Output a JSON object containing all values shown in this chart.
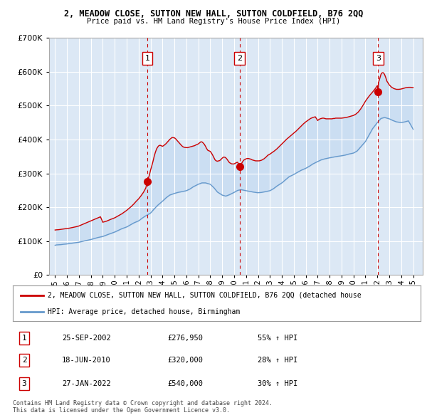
{
  "title1": "2, MEADOW CLOSE, SUTTON NEW HALL, SUTTON COLDFIELD, B76 2QQ",
  "title2": "Price paid vs. HM Land Registry's House Price Index (HPI)",
  "legend_line1": "2, MEADOW CLOSE, SUTTON NEW HALL, SUTTON COLDFIELD, B76 2QQ (detached house",
  "legend_line2": "HPI: Average price, detached house, Birmingham",
  "transactions": [
    {
      "num": 1,
      "date": "25-SEP-2002",
      "price": 276950,
      "price_str": "£276,950",
      "pct": "55%",
      "dir": "↑",
      "x": 2002.73
    },
    {
      "num": 2,
      "date": "18-JUN-2010",
      "price": 320000,
      "price_str": "£320,000",
      "pct": "28%",
      "dir": "↑",
      "x": 2010.46
    },
    {
      "num": 3,
      "date": "27-JAN-2022",
      "price": 540000,
      "price_str": "£540,000",
      "pct": "30%",
      "dir": "↑",
      "x": 2022.07
    }
  ],
  "copyright": "Contains HM Land Registry data © Crown copyright and database right 2024.\nThis data is licensed under the Open Government Licence v3.0.",
  "hpi_color": "#6699cc",
  "price_color": "#cc0000",
  "fill_color": "#ddeeff",
  "vline_color": "#cc0000",
  "ylim": [
    0,
    700000
  ],
  "xlim_start": 1994.5,
  "xlim_end": 2025.8,
  "yticks": [
    0,
    100000,
    200000,
    300000,
    400000,
    500000,
    600000,
    700000
  ],
  "xtick_years": [
    1995,
    1996,
    1997,
    1998,
    1999,
    2000,
    2001,
    2002,
    2003,
    2004,
    2005,
    2006,
    2007,
    2008,
    2009,
    2010,
    2011,
    2012,
    2013,
    2014,
    2015,
    2016,
    2017,
    2018,
    2019,
    2020,
    2021,
    2022,
    2023,
    2024,
    2025
  ],
  "hpi_data": [
    [
      1995.0,
      88000
    ],
    [
      1995.1,
      89000
    ],
    [
      1995.3,
      89500
    ],
    [
      1995.5,
      90000
    ],
    [
      1995.7,
      91000
    ],
    [
      1996.0,
      92000
    ],
    [
      1996.3,
      93500
    ],
    [
      1996.6,
      95000
    ],
    [
      1997.0,
      97000
    ],
    [
      1997.3,
      99500
    ],
    [
      1997.6,
      102000
    ],
    [
      1998.0,
      105000
    ],
    [
      1998.3,
      108000
    ],
    [
      1998.6,
      111000
    ],
    [
      1999.0,
      114000
    ],
    [
      1999.3,
      118000
    ],
    [
      1999.6,
      122000
    ],
    [
      2000.0,
      127000
    ],
    [
      2000.3,
      132000
    ],
    [
      2000.6,
      137000
    ],
    [
      2001.0,
      142000
    ],
    [
      2001.3,
      148000
    ],
    [
      2001.6,
      154000
    ],
    [
      2002.0,
      160000
    ],
    [
      2002.3,
      168000
    ],
    [
      2002.6,
      175000
    ],
    [
      2003.0,
      183000
    ],
    [
      2003.3,
      195000
    ],
    [
      2003.6,
      206000
    ],
    [
      2004.0,
      218000
    ],
    [
      2004.3,
      228000
    ],
    [
      2004.6,
      236000
    ],
    [
      2005.0,
      241000
    ],
    [
      2005.3,
      244000
    ],
    [
      2005.6,
      246000
    ],
    [
      2006.0,
      249000
    ],
    [
      2006.3,
      254000
    ],
    [
      2006.6,
      261000
    ],
    [
      2007.0,
      268000
    ],
    [
      2007.3,
      272000
    ],
    [
      2007.6,
      272000
    ],
    [
      2008.0,
      268000
    ],
    [
      2008.3,
      258000
    ],
    [
      2008.6,
      245000
    ],
    [
      2009.0,
      236000
    ],
    [
      2009.3,
      233000
    ],
    [
      2009.6,
      237000
    ],
    [
      2010.0,
      244000
    ],
    [
      2010.3,
      250000
    ],
    [
      2010.6,
      252000
    ],
    [
      2011.0,
      249000
    ],
    [
      2011.3,
      247000
    ],
    [
      2011.6,
      245000
    ],
    [
      2012.0,
      243000
    ],
    [
      2012.3,
      244000
    ],
    [
      2012.6,
      246000
    ],
    [
      2013.0,
      249000
    ],
    [
      2013.3,
      255000
    ],
    [
      2013.6,
      263000
    ],
    [
      2014.0,
      272000
    ],
    [
      2014.3,
      281000
    ],
    [
      2014.6,
      290000
    ],
    [
      2015.0,
      297000
    ],
    [
      2015.3,
      303000
    ],
    [
      2015.6,
      309000
    ],
    [
      2016.0,
      315000
    ],
    [
      2016.3,
      321000
    ],
    [
      2016.6,
      328000
    ],
    [
      2017.0,
      335000
    ],
    [
      2017.3,
      340000
    ],
    [
      2017.6,
      343000
    ],
    [
      2018.0,
      346000
    ],
    [
      2018.3,
      348000
    ],
    [
      2018.6,
      350000
    ],
    [
      2019.0,
      352000
    ],
    [
      2019.3,
      354000
    ],
    [
      2019.6,
      357000
    ],
    [
      2020.0,
      360000
    ],
    [
      2020.3,
      366000
    ],
    [
      2020.6,
      378000
    ],
    [
      2021.0,
      394000
    ],
    [
      2021.3,
      413000
    ],
    [
      2021.6,
      432000
    ],
    [
      2022.0,
      450000
    ],
    [
      2022.3,
      462000
    ],
    [
      2022.6,
      465000
    ],
    [
      2023.0,
      461000
    ],
    [
      2023.3,
      456000
    ],
    [
      2023.6,
      452000
    ],
    [
      2024.0,
      450000
    ],
    [
      2024.3,
      452000
    ],
    [
      2024.6,
      455000
    ],
    [
      2025.0,
      430000
    ]
  ],
  "price_data": [
    [
      1995.0,
      133000
    ],
    [
      1995.1,
      133500
    ],
    [
      1995.3,
      134000
    ],
    [
      1995.5,
      135000
    ],
    [
      1995.7,
      136000
    ],
    [
      1996.0,
      137500
    ],
    [
      1996.2,
      138500
    ],
    [
      1996.4,
      140000
    ],
    [
      1996.6,
      141500
    ],
    [
      1996.8,
      143000
    ],
    [
      1997.0,
      145000
    ],
    [
      1997.2,
      148000
    ],
    [
      1997.4,
      151000
    ],
    [
      1997.6,
      154000
    ],
    [
      1997.8,
      157000
    ],
    [
      1998.0,
      160000
    ],
    [
      1998.2,
      163000
    ],
    [
      1998.4,
      166000
    ],
    [
      1998.6,
      169000
    ],
    [
      1998.8,
      172000
    ],
    [
      1999.0,
      156000
    ],
    [
      1999.1,
      157000
    ],
    [
      1999.3,
      159000
    ],
    [
      1999.5,
      162000
    ],
    [
      1999.7,
      165000
    ],
    [
      2000.0,
      169000
    ],
    [
      2000.2,
      173000
    ],
    [
      2000.4,
      177000
    ],
    [
      2000.6,
      181000
    ],
    [
      2000.8,
      186000
    ],
    [
      2001.0,
      191000
    ],
    [
      2001.2,
      197000
    ],
    [
      2001.4,
      203000
    ],
    [
      2001.6,
      210000
    ],
    [
      2001.8,
      218000
    ],
    [
      2002.0,
      225000
    ],
    [
      2002.2,
      234000
    ],
    [
      2002.4,
      244000
    ],
    [
      2002.6,
      257000
    ],
    [
      2002.73,
      276950
    ],
    [
      2002.9,
      295000
    ],
    [
      2003.0,
      310000
    ],
    [
      2003.1,
      322000
    ],
    [
      2003.2,
      335000
    ],
    [
      2003.3,
      350000
    ],
    [
      2003.4,
      362000
    ],
    [
      2003.5,
      372000
    ],
    [
      2003.6,
      378000
    ],
    [
      2003.7,
      382000
    ],
    [
      2003.8,
      383000
    ],
    [
      2004.0,
      380000
    ],
    [
      2004.1,
      382000
    ],
    [
      2004.2,
      385000
    ],
    [
      2004.3,
      388000
    ],
    [
      2004.4,
      392000
    ],
    [
      2004.5,
      396000
    ],
    [
      2004.6,
      400000
    ],
    [
      2004.7,
      403000
    ],
    [
      2004.8,
      406000
    ],
    [
      2005.0,
      405000
    ],
    [
      2005.1,
      402000
    ],
    [
      2005.2,
      398000
    ],
    [
      2005.3,
      394000
    ],
    [
      2005.4,
      390000
    ],
    [
      2005.5,
      386000
    ],
    [
      2005.6,
      382000
    ],
    [
      2005.7,
      379000
    ],
    [
      2005.8,
      377000
    ],
    [
      2006.0,
      376000
    ],
    [
      2006.1,
      376000
    ],
    [
      2006.2,
      377000
    ],
    [
      2006.3,
      378000
    ],
    [
      2006.4,
      379000
    ],
    [
      2006.5,
      380000
    ],
    [
      2006.6,
      381000
    ],
    [
      2006.7,
      382000
    ],
    [
      2006.8,
      384000
    ],
    [
      2007.0,
      387000
    ],
    [
      2007.1,
      390000
    ],
    [
      2007.2,
      393000
    ],
    [
      2007.3,
      393000
    ],
    [
      2007.4,
      390000
    ],
    [
      2007.5,
      386000
    ],
    [
      2007.6,
      380000
    ],
    [
      2007.7,
      373000
    ],
    [
      2007.8,
      368000
    ],
    [
      2008.0,
      365000
    ],
    [
      2008.1,
      360000
    ],
    [
      2008.2,
      354000
    ],
    [
      2008.3,
      347000
    ],
    [
      2008.4,
      340000
    ],
    [
      2008.5,
      337000
    ],
    [
      2008.6,
      336000
    ],
    [
      2008.7,
      337000
    ],
    [
      2008.8,
      338000
    ],
    [
      2009.0,
      345000
    ],
    [
      2009.1,
      348000
    ],
    [
      2009.2,
      348000
    ],
    [
      2009.3,
      346000
    ],
    [
      2009.4,
      342000
    ],
    [
      2009.5,
      337000
    ],
    [
      2009.6,
      332000
    ],
    [
      2009.7,
      330000
    ],
    [
      2009.8,
      328000
    ],
    [
      2010.0,
      328000
    ],
    [
      2010.1,
      330000
    ],
    [
      2010.2,
      332000
    ],
    [
      2010.3,
      333000
    ],
    [
      2010.46,
      320000
    ],
    [
      2010.5,
      322000
    ],
    [
      2010.6,
      328000
    ],
    [
      2010.7,
      334000
    ],
    [
      2010.8,
      339000
    ],
    [
      2011.0,
      343000
    ],
    [
      2011.1,
      344000
    ],
    [
      2011.2,
      344000
    ],
    [
      2011.3,
      343000
    ],
    [
      2011.4,
      342000
    ],
    [
      2011.5,
      340000
    ],
    [
      2011.6,
      339000
    ],
    [
      2011.7,
      338000
    ],
    [
      2011.8,
      337000
    ],
    [
      2012.0,
      337000
    ],
    [
      2012.1,
      337000
    ],
    [
      2012.2,
      338000
    ],
    [
      2012.3,
      339000
    ],
    [
      2012.4,
      341000
    ],
    [
      2012.5,
      343000
    ],
    [
      2012.6,
      346000
    ],
    [
      2012.7,
      349000
    ],
    [
      2012.8,
      353000
    ],
    [
      2013.0,
      357000
    ],
    [
      2013.2,
      362000
    ],
    [
      2013.4,
      367000
    ],
    [
      2013.6,
      373000
    ],
    [
      2013.8,
      380000
    ],
    [
      2014.0,
      387000
    ],
    [
      2014.2,
      394000
    ],
    [
      2014.4,
      401000
    ],
    [
      2014.6,
      407000
    ],
    [
      2014.8,
      413000
    ],
    [
      2015.0,
      419000
    ],
    [
      2015.2,
      425000
    ],
    [
      2015.4,
      432000
    ],
    [
      2015.6,
      439000
    ],
    [
      2015.8,
      446000
    ],
    [
      2016.0,
      452000
    ],
    [
      2016.2,
      457000
    ],
    [
      2016.4,
      462000
    ],
    [
      2016.6,
      465000
    ],
    [
      2016.8,
      467000
    ],
    [
      2017.0,
      456000
    ],
    [
      2017.1,
      459000
    ],
    [
      2017.2,
      461000
    ],
    [
      2017.3,
      462000
    ],
    [
      2017.4,
      463000
    ],
    [
      2017.5,
      463000
    ],
    [
      2017.6,
      462000
    ],
    [
      2017.7,
      461000
    ],
    [
      2017.8,
      461000
    ],
    [
      2018.0,
      461000
    ],
    [
      2018.1,
      461000
    ],
    [
      2018.2,
      461000
    ],
    [
      2018.3,
      462000
    ],
    [
      2018.4,
      462000
    ],
    [
      2018.5,
      463000
    ],
    [
      2018.6,
      463000
    ],
    [
      2018.7,
      463000
    ],
    [
      2018.8,
      463000
    ],
    [
      2019.0,
      463000
    ],
    [
      2019.2,
      464000
    ],
    [
      2019.4,
      465000
    ],
    [
      2019.6,
      467000
    ],
    [
      2019.8,
      469000
    ],
    [
      2020.0,
      471000
    ],
    [
      2020.2,
      475000
    ],
    [
      2020.4,
      481000
    ],
    [
      2020.6,
      490000
    ],
    [
      2020.8,
      501000
    ],
    [
      2021.0,
      513000
    ],
    [
      2021.2,
      523000
    ],
    [
      2021.4,
      532000
    ],
    [
      2021.6,
      540000
    ],
    [
      2021.8,
      549000
    ],
    [
      2022.0,
      559000
    ],
    [
      2022.07,
      540000
    ],
    [
      2022.1,
      568000
    ],
    [
      2022.2,
      580000
    ],
    [
      2022.3,
      592000
    ],
    [
      2022.4,
      597000
    ],
    [
      2022.5,
      597000
    ],
    [
      2022.6,
      592000
    ],
    [
      2022.7,
      583000
    ],
    [
      2022.8,
      572000
    ],
    [
      2023.0,
      561000
    ],
    [
      2023.2,
      554000
    ],
    [
      2023.4,
      550000
    ],
    [
      2023.6,
      548000
    ],
    [
      2023.8,
      548000
    ],
    [
      2024.0,
      549000
    ],
    [
      2024.2,
      551000
    ],
    [
      2024.4,
      553000
    ],
    [
      2024.6,
      554000
    ],
    [
      2024.8,
      554000
    ],
    [
      2025.0,
      553000
    ]
  ]
}
